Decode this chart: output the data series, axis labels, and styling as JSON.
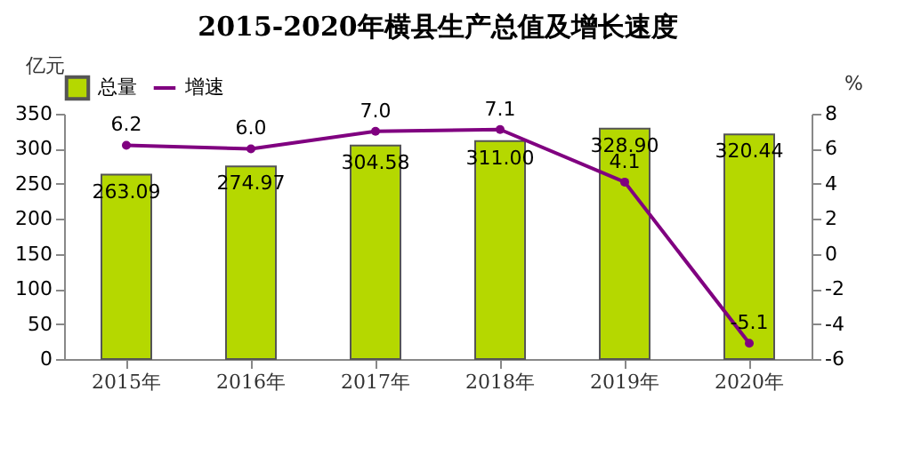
{
  "chart_data": {
    "type": "bar",
    "title": "2015-2020年横县生产总值及增长速度",
    "categories": [
      "2015年",
      "2016年",
      "2017年",
      "2018年",
      "2019年",
      "2020年"
    ],
    "series": [
      {
        "name": "总量",
        "color": "#b5d800",
        "values": [
          263.09,
          274.97,
          304.58,
          311.0,
          328.9,
          320.44
        ],
        "value_labels": [
          "263.09",
          "274.97",
          "304.58",
          "311.00",
          "328.90",
          "320.44"
        ]
      },
      {
        "name": "增速",
        "type": "line",
        "axis": "y2",
        "color": "#800080",
        "marker": "circle",
        "values": [
          6.2,
          6.0,
          7.0,
          7.1,
          4.1,
          -5.1
        ],
        "value_labels": [
          "6.2",
          "6.0",
          "7.0",
          "7.1",
          "4.1",
          "-5.1"
        ]
      }
    ],
    "ylabel": "亿元",
    "y2label": "%",
    "ylim": [
      0,
      350
    ],
    "yticks": [
      0,
      50,
      100,
      150,
      200,
      250,
      300,
      350
    ],
    "y2lim": [
      -6,
      8
    ],
    "y2ticks": [
      -6,
      -4,
      -2,
      0,
      2,
      4,
      6,
      8
    ],
    "legend": "top",
    "grid": false
  }
}
